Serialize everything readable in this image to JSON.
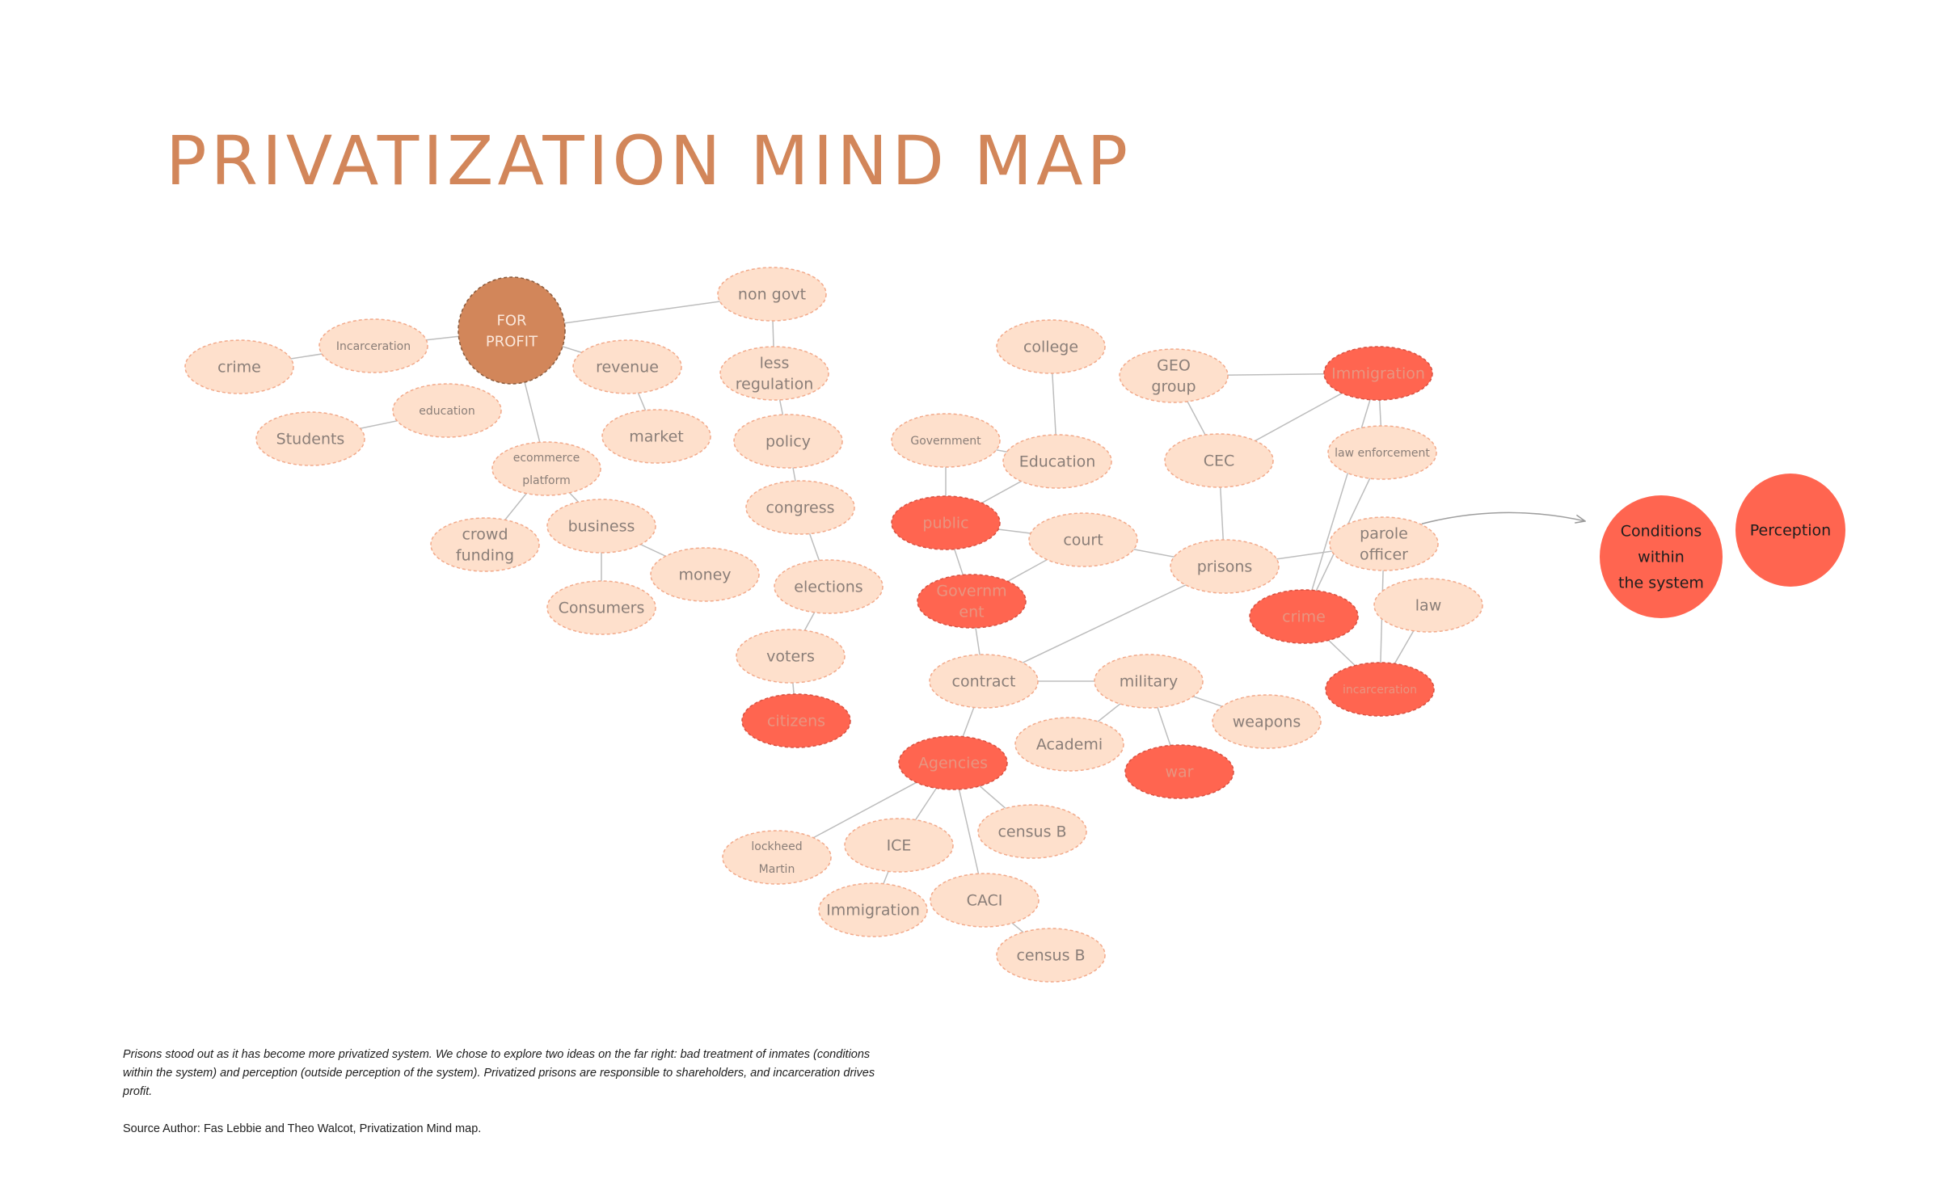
{
  "title": "PRIVATIZATION MIND MAP",
  "colors": {
    "title": "#D2865A",
    "hub_fill": "#D2865A",
    "hub_text": "#FBE8DC",
    "light_fill": "#FEE0CC",
    "light_border": "#F2A98A",
    "light_text": "#8A7E78",
    "red_fill": "#FF6550",
    "red_text": "#E89580",
    "red_dark_text": "#1E1E1E",
    "line": "#BDBDBD"
  },
  "nodes": [
    {
      "id": "for_profit",
      "lines": [
        "FOR",
        "PROFIT"
      ],
      "style": "hub"
    },
    {
      "id": "non_govt",
      "lines": [
        "non govt"
      ],
      "style": "light"
    },
    {
      "id": "crime1",
      "lines": [
        "crime"
      ],
      "style": "light"
    },
    {
      "id": "incarceration1",
      "lines": [
        "Incarceration"
      ],
      "style": "light",
      "small": true
    },
    {
      "id": "revenue",
      "lines": [
        "revenue"
      ],
      "style": "light"
    },
    {
      "id": "less_regulation",
      "lines": [
        "less",
        "regulation"
      ],
      "style": "light"
    },
    {
      "id": "education1",
      "lines": [
        "education"
      ],
      "style": "light",
      "small": true
    },
    {
      "id": "students",
      "lines": [
        "Students"
      ],
      "style": "light"
    },
    {
      "id": "market",
      "lines": [
        "market"
      ],
      "style": "light"
    },
    {
      "id": "ecommerce",
      "lines": [
        "ecommerce",
        "platform"
      ],
      "style": "light",
      "small": true
    },
    {
      "id": "policy",
      "lines": [
        "policy"
      ],
      "style": "light"
    },
    {
      "id": "congress",
      "lines": [
        "congress"
      ],
      "style": "light"
    },
    {
      "id": "business",
      "lines": [
        "business"
      ],
      "style": "light"
    },
    {
      "id": "crowd_funding",
      "lines": [
        "crowd",
        "funding"
      ],
      "style": "light"
    },
    {
      "id": "money",
      "lines": [
        "money"
      ],
      "style": "light"
    },
    {
      "id": "consumers",
      "lines": [
        "Consumers"
      ],
      "style": "light"
    },
    {
      "id": "elections",
      "lines": [
        "elections"
      ],
      "style": "light"
    },
    {
      "id": "voters",
      "lines": [
        "voters"
      ],
      "style": "light"
    },
    {
      "id": "citizens",
      "lines": [
        "citizens"
      ],
      "style": "red"
    },
    {
      "id": "college",
      "lines": [
        "college"
      ],
      "style": "light"
    },
    {
      "id": "government1",
      "lines": [
        "Government"
      ],
      "style": "light",
      "small": true
    },
    {
      "id": "education2",
      "lines": [
        "Education"
      ],
      "style": "light"
    },
    {
      "id": "public",
      "lines": [
        "public"
      ],
      "style": "red"
    },
    {
      "id": "court",
      "lines": [
        "court"
      ],
      "style": "light"
    },
    {
      "id": "government2",
      "lines": [
        "Governm",
        "ent"
      ],
      "style": "red"
    },
    {
      "id": "geo_group",
      "lines": [
        "GEO",
        "group"
      ],
      "style": "light"
    },
    {
      "id": "immigration1",
      "lines": [
        "Immigration"
      ],
      "style": "red"
    },
    {
      "id": "cec",
      "lines": [
        "CEC"
      ],
      "style": "light"
    },
    {
      "id": "law_enforcement",
      "lines": [
        "law enforcement"
      ],
      "style": "light",
      "small": true
    },
    {
      "id": "prisons",
      "lines": [
        "prisons"
      ],
      "style": "light"
    },
    {
      "id": "parole_officer",
      "lines": [
        "parole",
        "officer"
      ],
      "style": "light"
    },
    {
      "id": "crime2",
      "lines": [
        "crime"
      ],
      "style": "red"
    },
    {
      "id": "law",
      "lines": [
        "law"
      ],
      "style": "light"
    },
    {
      "id": "incarceration2",
      "lines": [
        "incarceration"
      ],
      "style": "red",
      "small": true
    },
    {
      "id": "contract",
      "lines": [
        "contract"
      ],
      "style": "light"
    },
    {
      "id": "military",
      "lines": [
        "military"
      ],
      "style": "light"
    },
    {
      "id": "weapons",
      "lines": [
        "weapons"
      ],
      "style": "light"
    },
    {
      "id": "academi",
      "lines": [
        "Academi"
      ],
      "style": "light"
    },
    {
      "id": "war",
      "lines": [
        "war"
      ],
      "style": "red"
    },
    {
      "id": "agencies",
      "lines": [
        "Agencies"
      ],
      "style": "red"
    },
    {
      "id": "census_b1",
      "lines": [
        "census B"
      ],
      "style": "light"
    },
    {
      "id": "lockheed",
      "lines": [
        "lockheed",
        "Martin"
      ],
      "style": "light",
      "small": true
    },
    {
      "id": "ice",
      "lines": [
        "ICE"
      ],
      "style": "light"
    },
    {
      "id": "immigration2",
      "lines": [
        "Immigration"
      ],
      "style": "light"
    },
    {
      "id": "caci",
      "lines": [
        "CACI"
      ],
      "style": "light"
    },
    {
      "id": "census_b2",
      "lines": [
        "census B"
      ],
      "style": "light"
    },
    {
      "id": "conditions",
      "lines": [
        "Conditions",
        "within",
        "the system"
      ],
      "style": "big"
    },
    {
      "id": "perception",
      "lines": [
        "Perception"
      ],
      "style": "big"
    }
  ],
  "edges": [
    [
      "for_profit",
      "non_govt"
    ],
    [
      "for_profit",
      "incarceration1"
    ],
    [
      "crime1",
      "incarceration1"
    ],
    [
      "for_profit",
      "revenue"
    ],
    [
      "revenue",
      "market"
    ],
    [
      "for_profit",
      "ecommerce"
    ],
    [
      "students",
      "education1"
    ],
    [
      "ecommerce",
      "business"
    ],
    [
      "ecommerce",
      "crowd_funding"
    ],
    [
      "business",
      "money"
    ],
    [
      "business",
      "consumers"
    ],
    [
      "non_govt",
      "less_regulation"
    ],
    [
      "less_regulation",
      "policy"
    ],
    [
      "policy",
      "congress"
    ],
    [
      "congress",
      "elections"
    ],
    [
      "elections",
      "voters"
    ],
    [
      "voters",
      "citizens"
    ],
    [
      "college",
      "education2"
    ],
    [
      "government1",
      "education2"
    ],
    [
      "government1",
      "public"
    ],
    [
      "education2",
      "public"
    ],
    [
      "public",
      "court"
    ],
    [
      "public",
      "government2"
    ],
    [
      "court",
      "government2"
    ],
    [
      "court",
      "prisons"
    ],
    [
      "government2",
      "contract"
    ],
    [
      "prisons",
      "contract"
    ],
    [
      "prisons",
      "cec"
    ],
    [
      "cec",
      "geo_group"
    ],
    [
      "cec",
      "immigration1"
    ],
    [
      "geo_group",
      "immigration1"
    ],
    [
      "immigration1",
      "law_enforcement"
    ],
    [
      "immigration1",
      "crime2"
    ],
    [
      "law_enforcement",
      "crime2"
    ],
    [
      "prisons",
      "parole_officer"
    ],
    [
      "parole_officer",
      "incarceration2"
    ],
    [
      "law",
      "incarceration2"
    ],
    [
      "crime2",
      "incarceration2"
    ],
    [
      "contract",
      "military"
    ],
    [
      "contract",
      "agencies"
    ],
    [
      "military",
      "weapons"
    ],
    [
      "military",
      "academi"
    ],
    [
      "military",
      "war"
    ],
    [
      "agencies",
      "census_b1"
    ],
    [
      "agencies",
      "lockheed"
    ],
    [
      "agencies",
      "ice"
    ],
    [
      "agencies",
      "caci"
    ],
    [
      "ice",
      "immigration2"
    ],
    [
      "caci",
      "census_b2"
    ]
  ],
  "arrow": {
    "from": "parole_officer",
    "to": "conditions"
  },
  "caption": "Prisons  stood out as it has become more  privatized system. We chose to explore two ideas on the far right: bad treatment of inmates (conditions within the system) and perception (outside perception of the system). Privatized prisons are responsible to shareholders, and incarceration drives profit.",
  "source": "Source Author: Fas Lebbie and Theo Walcot, Privatization Mind map."
}
